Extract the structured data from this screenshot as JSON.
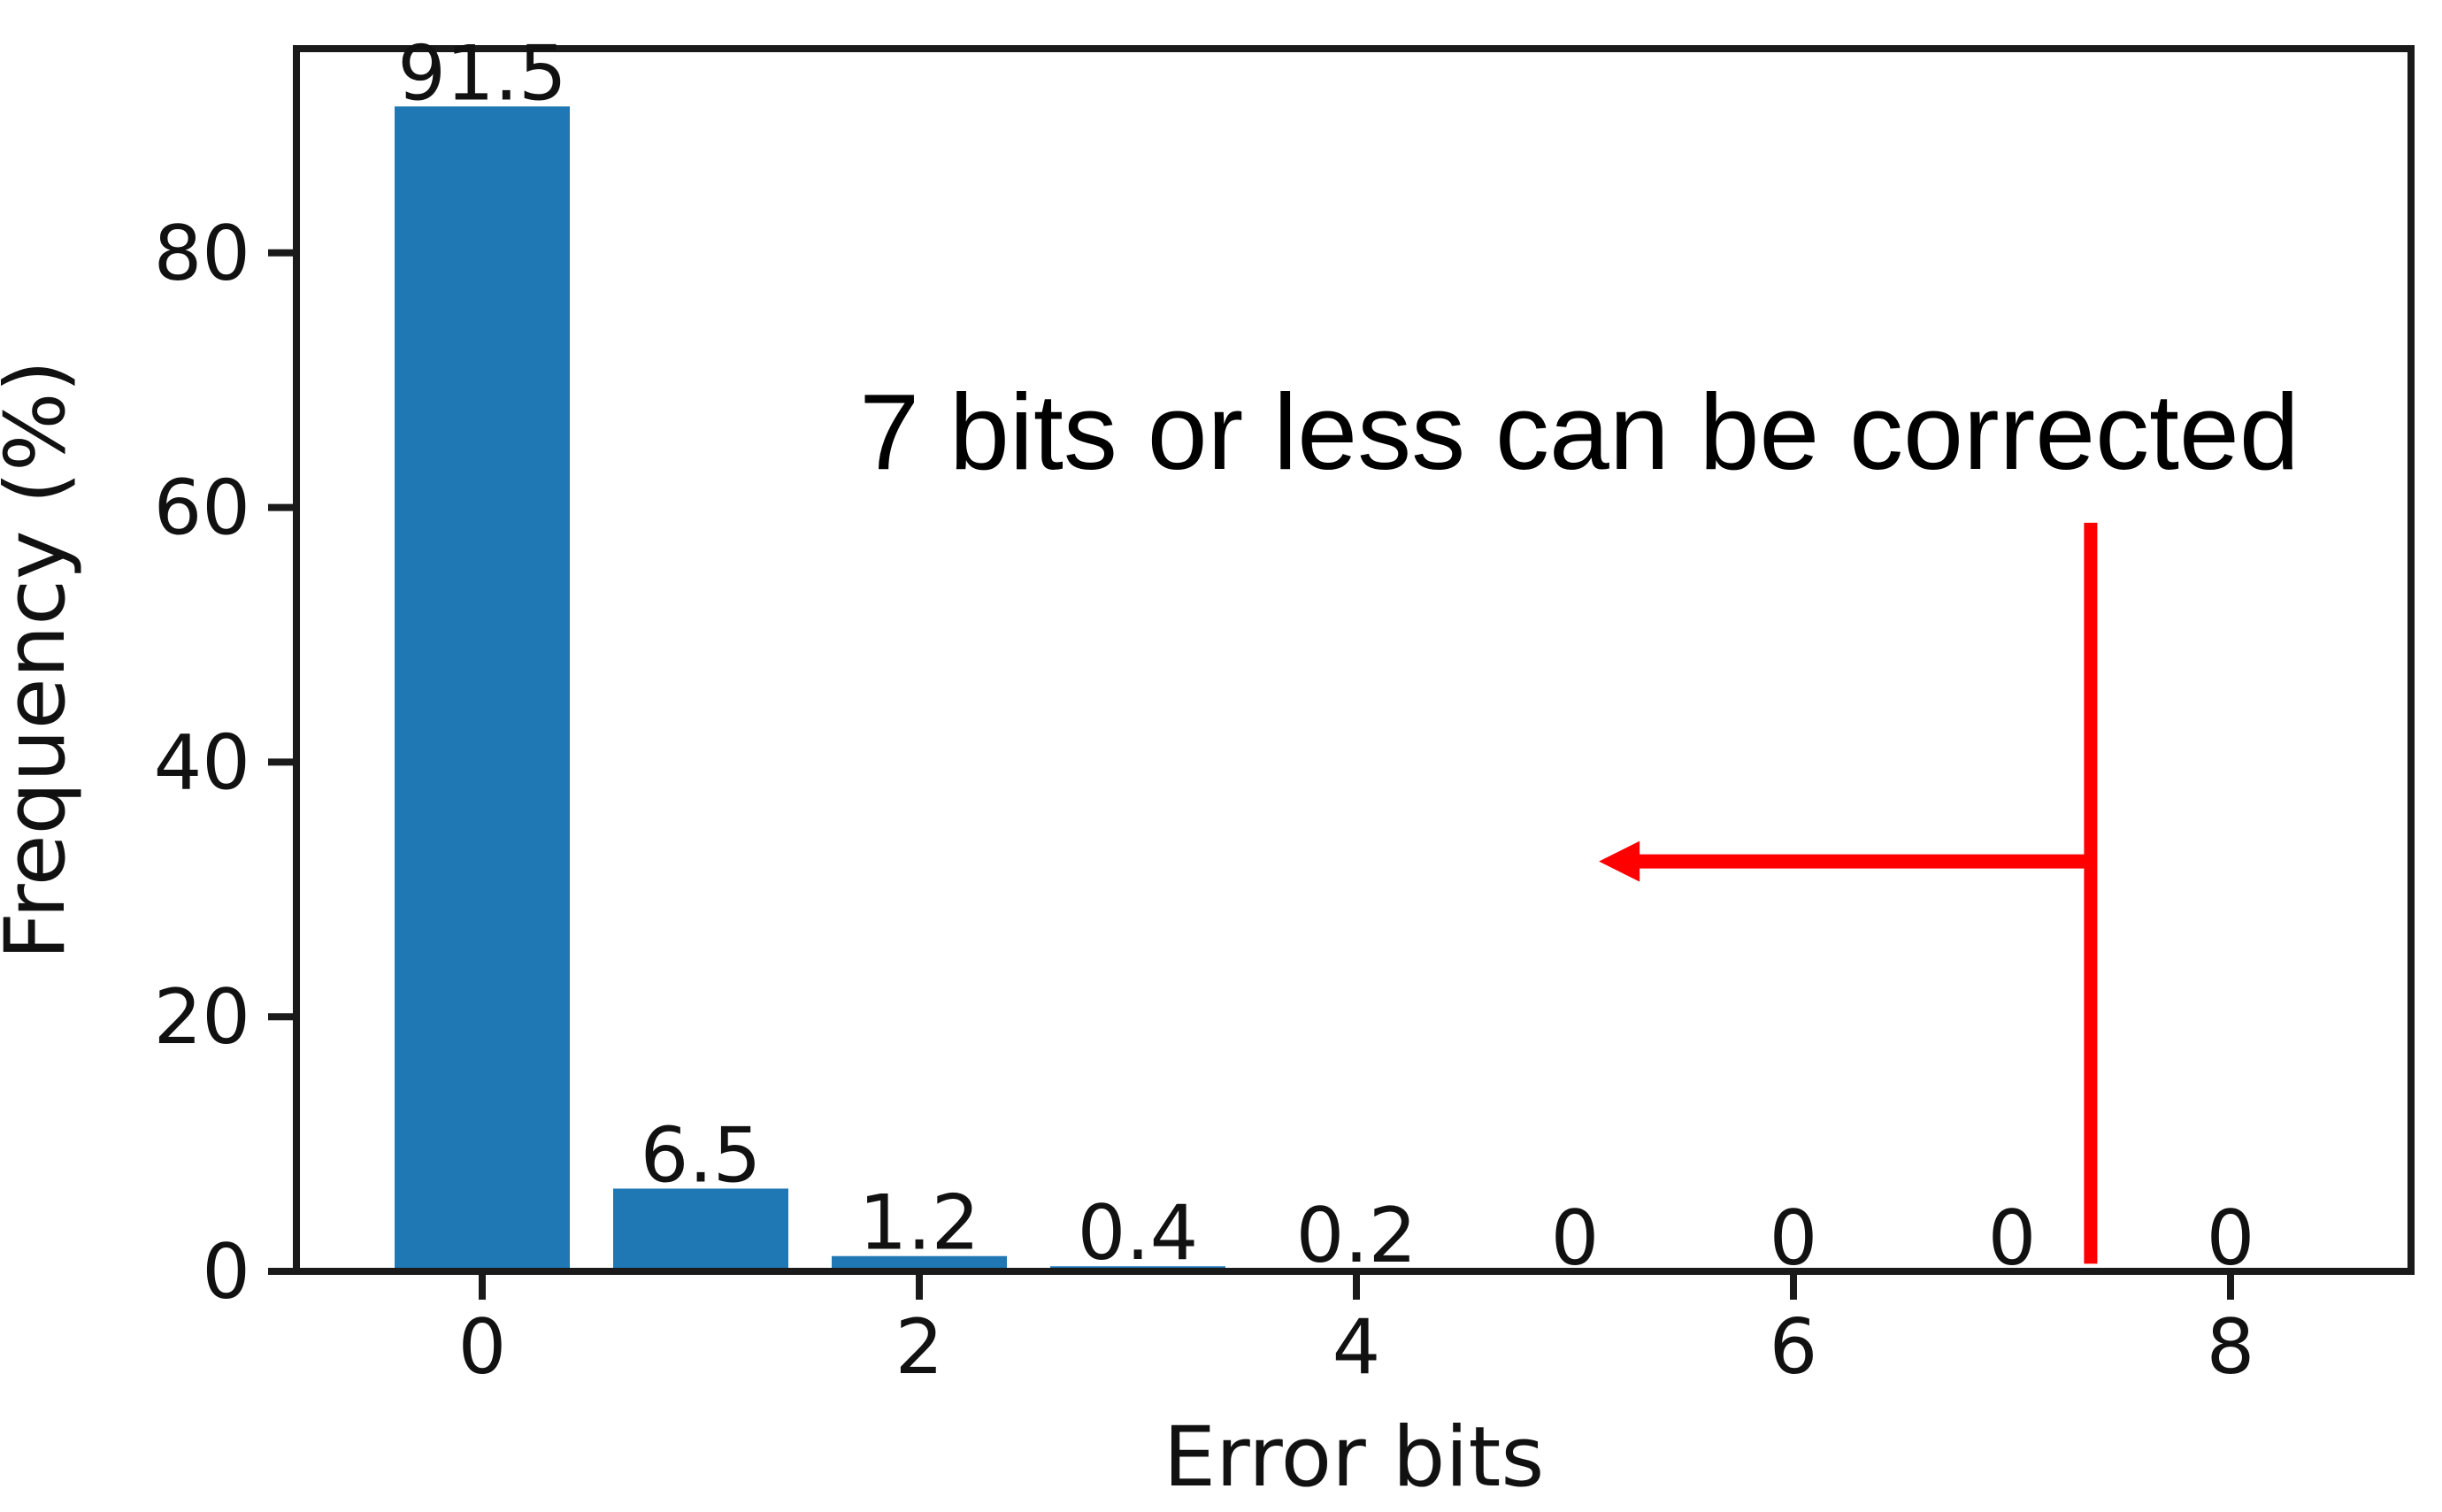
{
  "chart_data": {
    "type": "bar",
    "title": "",
    "xlabel": "Error bits",
    "ylabel": "Frequency (%)",
    "categories": [
      0,
      1,
      2,
      3,
      4,
      5,
      6,
      7,
      8
    ],
    "values": [
      91.5,
      6.5,
      1.2,
      0.4,
      0.2,
      0,
      0,
      0,
      0
    ],
    "bar_labels": [
      "91.5",
      "6.5",
      "1.2",
      "0.4",
      "0.2",
      "0",
      "0",
      "0",
      "0"
    ],
    "bar_color": "#1f77b4",
    "xticks": [
      0,
      2,
      4,
      6,
      8
    ],
    "xtick_labels": [
      "0",
      "2",
      "4",
      "6",
      "8"
    ],
    "yticks": [
      0,
      20,
      40,
      60,
      80
    ],
    "ytick_labels": [
      "0",
      "20",
      "40",
      "60",
      "80"
    ],
    "xlim": [
      -0.85,
      8.85
    ],
    "ylim": [
      0,
      96.5
    ],
    "grid": false,
    "legend": null,
    "annotation": {
      "text": "7 bits or less can be corrected",
      "color": "#fe0000",
      "vline_x": 7.36,
      "vline_y_range": [
        0.6,
        58.8
      ],
      "arrow_y": 32.2,
      "arrow_from_x": 7.36,
      "arrow_to_x": 5.11
    }
  }
}
